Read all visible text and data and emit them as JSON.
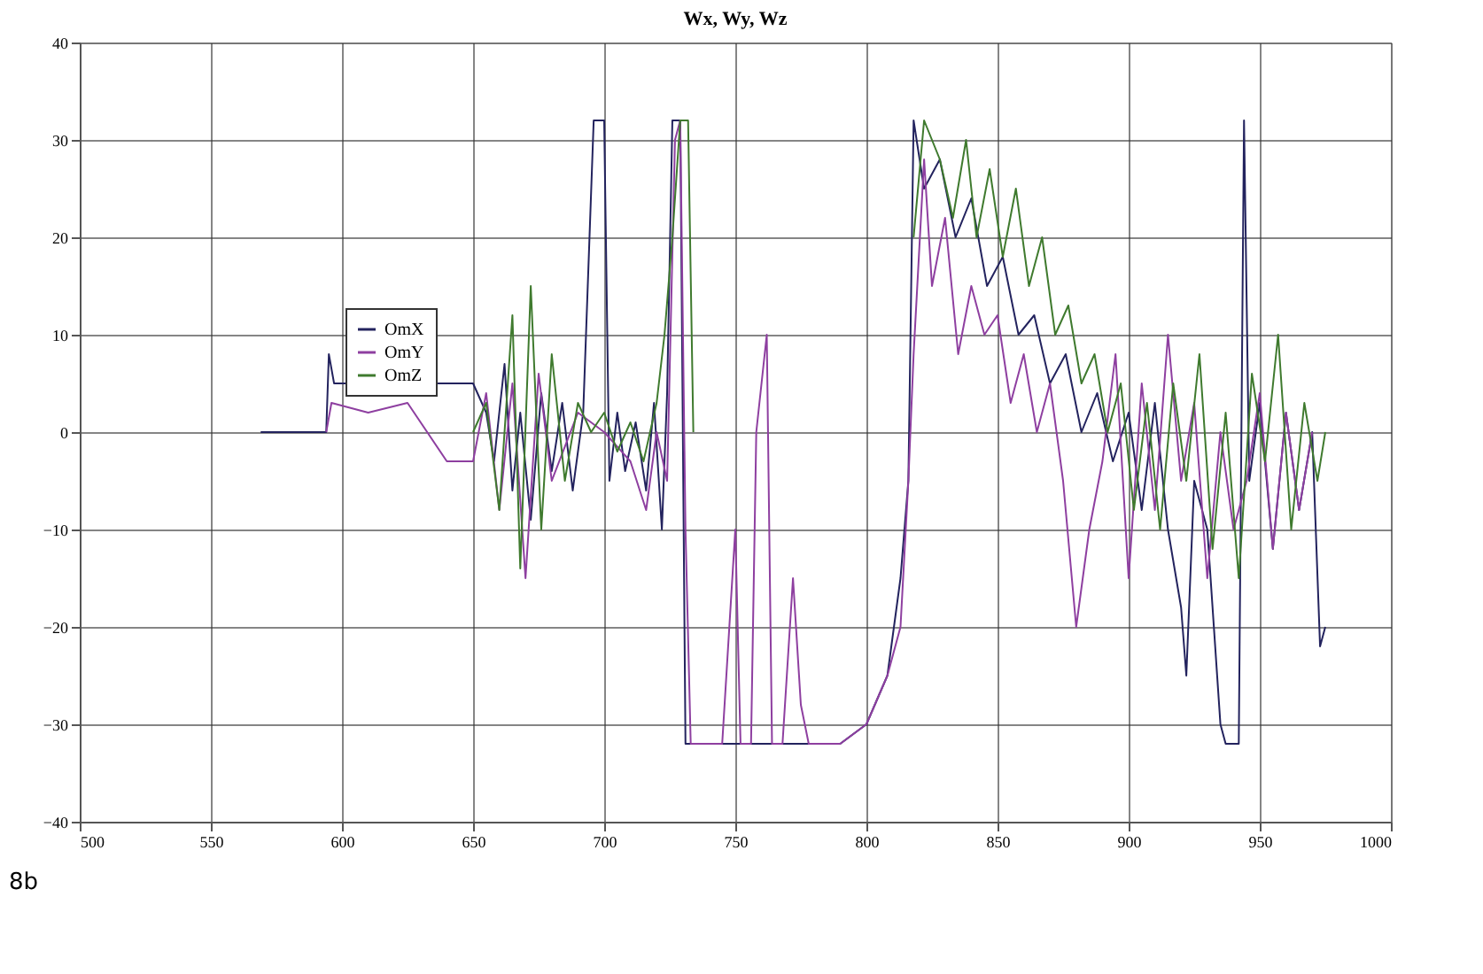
{
  "chart_data": {
    "type": "line",
    "title": "Wx, Wy, Wz",
    "annotations": [
      "8b"
    ],
    "xlim": [
      500,
      1000
    ],
    "xticks": [
      500,
      550,
      600,
      650,
      700,
      750,
      800,
      850,
      900,
      950,
      1000
    ],
    "ylim": [
      -40,
      40
    ],
    "yticks": [
      -40,
      -30,
      -20,
      -10,
      0,
      10,
      20,
      30,
      40
    ],
    "grid": true,
    "legend": "top left",
    "line_style": "solid",
    "marker": "none",
    "series": [
      {
        "name": "OmX",
        "color": "#23235e",
        "x": [
          569,
          594,
          595,
          597,
          650,
          655,
          658,
          662,
          665,
          668,
          672,
          676,
          680,
          684,
          688,
          692,
          696,
          700,
          702,
          705,
          708,
          712,
          716,
          719,
          722,
          724,
          726,
          729,
          731,
          790,
          800,
          808,
          813,
          816,
          818,
          822,
          828,
          834,
          840,
          846,
          852,
          858,
          864,
          870,
          876,
          882,
          888,
          894,
          900,
          905,
          910,
          915,
          920,
          922,
          925,
          930,
          935,
          937,
          942,
          944,
          946,
          950,
          955,
          960,
          965,
          970,
          973,
          975
        ],
        "values": [
          0,
          0,
          8,
          5,
          5,
          2,
          -3,
          7,
          -6,
          2,
          -9,
          4,
          -4,
          3,
          -6,
          2,
          32,
          32,
          -5,
          2,
          -4,
          1,
          -6,
          3,
          -10,
          4,
          32,
          32,
          -32,
          -32,
          -30,
          -25,
          -15,
          -5,
          32,
          25,
          28,
          20,
          24,
          15,
          18,
          10,
          12,
          5,
          8,
          0,
          4,
          -3,
          2,
          -8,
          3,
          -10,
          -18,
          -25,
          -5,
          -10,
          -30,
          -32,
          -32,
          32,
          -5,
          3,
          -12,
          2,
          -8,
          0,
          -22,
          -20
        ]
      },
      {
        "name": "OmY",
        "color": "#8e3fa0",
        "x": [
          594,
          596,
          610,
          625,
          640,
          650,
          655,
          660,
          665,
          670,
          675,
          680,
          690,
          700,
          710,
          716,
          720,
          724,
          727,
          729,
          731,
          733,
          745,
          750,
          752,
          756,
          758,
          762,
          764,
          768,
          772,
          775,
          778,
          790,
          800,
          808,
          813,
          816,
          818,
          822,
          825,
          830,
          835,
          840,
          845,
          850,
          855,
          860,
          865,
          870,
          875,
          880,
          885,
          890,
          895,
          900,
          905,
          910,
          915,
          920,
          925,
          930,
          935,
          940,
          945,
          950,
          955,
          960,
          965,
          970
        ],
        "values": [
          0,
          3,
          2,
          3,
          -3,
          -3,
          4,
          -8,
          5,
          -15,
          6,
          -5,
          2,
          0,
          -3,
          -8,
          0,
          -5,
          30,
          32,
          -10,
          -32,
          -32,
          -10,
          -32,
          -32,
          0,
          10,
          -32,
          -32,
          -15,
          -28,
          -32,
          -32,
          -30,
          -25,
          -20,
          -5,
          8,
          28,
          15,
          22,
          8,
          15,
          10,
          12,
          3,
          8,
          0,
          5,
          -5,
          -20,
          -10,
          -3,
          8,
          -15,
          5,
          -8,
          10,
          -5,
          3,
          -15,
          0,
          -10,
          -5,
          4,
          -12,
          2,
          -8,
          0
        ]
      },
      {
        "name": "OmZ",
        "color": "#3f7a2e",
        "x": [
          650,
          655,
          660,
          665,
          668,
          672,
          676,
          680,
          685,
          690,
          695,
          700,
          705,
          710,
          715,
          720,
          723,
          726,
          729,
          732,
          734,
          815,
          818,
          822,
          828,
          833,
          838,
          842,
          847,
          852,
          857,
          862,
          867,
          872,
          877,
          882,
          887,
          892,
          897,
          902,
          907,
          912,
          917,
          922,
          927,
          932,
          937,
          942,
          947,
          952,
          957,
          962,
          967,
          972,
          975
        ],
        "values": [
          0,
          3,
          -8,
          12,
          -14,
          15,
          -10,
          8,
          -5,
          3,
          0,
          2,
          -2,
          1,
          -3,
          3,
          10,
          20,
          32,
          32,
          0,
          null,
          20,
          32,
          28,
          22,
          30,
          20,
          27,
          18,
          25,
          15,
          20,
          10,
          13,
          5,
          8,
          0,
          5,
          -8,
          3,
          -10,
          5,
          -5,
          8,
          -12,
          2,
          -15,
          6,
          -3,
          10,
          -10,
          3,
          -5,
          0
        ]
      }
    ]
  }
}
